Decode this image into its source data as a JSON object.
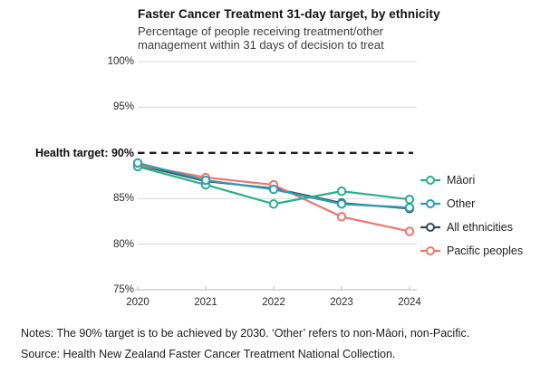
{
  "header": {
    "title": "Faster Cancer Treatment 31-day target, by ethnicity",
    "subtitle_line1": "Percentage of people receiving treatment/other",
    "subtitle_line2": "management within 31 days of decision to treat"
  },
  "footer": {
    "notes": "Notes: The 90% target is to be achieved by 2030. ‘Other’ refers to non-Māori, non-Pacific.",
    "source": "Source: Health New Zealand Faster Cancer Treatment National Collection."
  },
  "colors": {
    "maori": "#2bb08c",
    "other": "#2a9db4",
    "all_ethnicities": "#364a4e",
    "pacific": "#f3756c",
    "gridline": "#dadada",
    "axis": "#c8c8c8",
    "target_line": "#1e1e1e"
  },
  "chart_data": {
    "type": "line",
    "x": [
      "2020",
      "2021",
      "2022",
      "2023",
      "2024"
    ],
    "series": [
      {
        "name": "Māori",
        "color": "#2bb08c",
        "values": [
          88.5,
          86.5,
          84.4,
          85.8,
          84.9
        ]
      },
      {
        "name": "Other",
        "color": "#2a9db4",
        "values": [
          88.9,
          87.0,
          86.0,
          84.4,
          84.0
        ]
      },
      {
        "name": "All ethnicities",
        "color": "#364a4e",
        "values": [
          88.7,
          86.9,
          86.1,
          84.5,
          83.9
        ]
      },
      {
        "name": "Pacific peoples",
        "color": "#f3756c",
        "values": [
          88.7,
          87.3,
          86.5,
          83.0,
          81.4
        ]
      }
    ],
    "y_ticks": [
      {
        "value": 100,
        "label": "100%"
      },
      {
        "value": 95,
        "label": "95%"
      },
      {
        "value": 85,
        "label": "85%"
      },
      {
        "value": 80,
        "label": "80%"
      },
      {
        "value": 75,
        "label": "75%"
      }
    ],
    "target": {
      "value": 90,
      "label": "Health target: 90%"
    },
    "ylim": [
      75,
      100
    ],
    "xlabel": "",
    "ylabel": "",
    "grid": true,
    "legend_position": "right"
  }
}
